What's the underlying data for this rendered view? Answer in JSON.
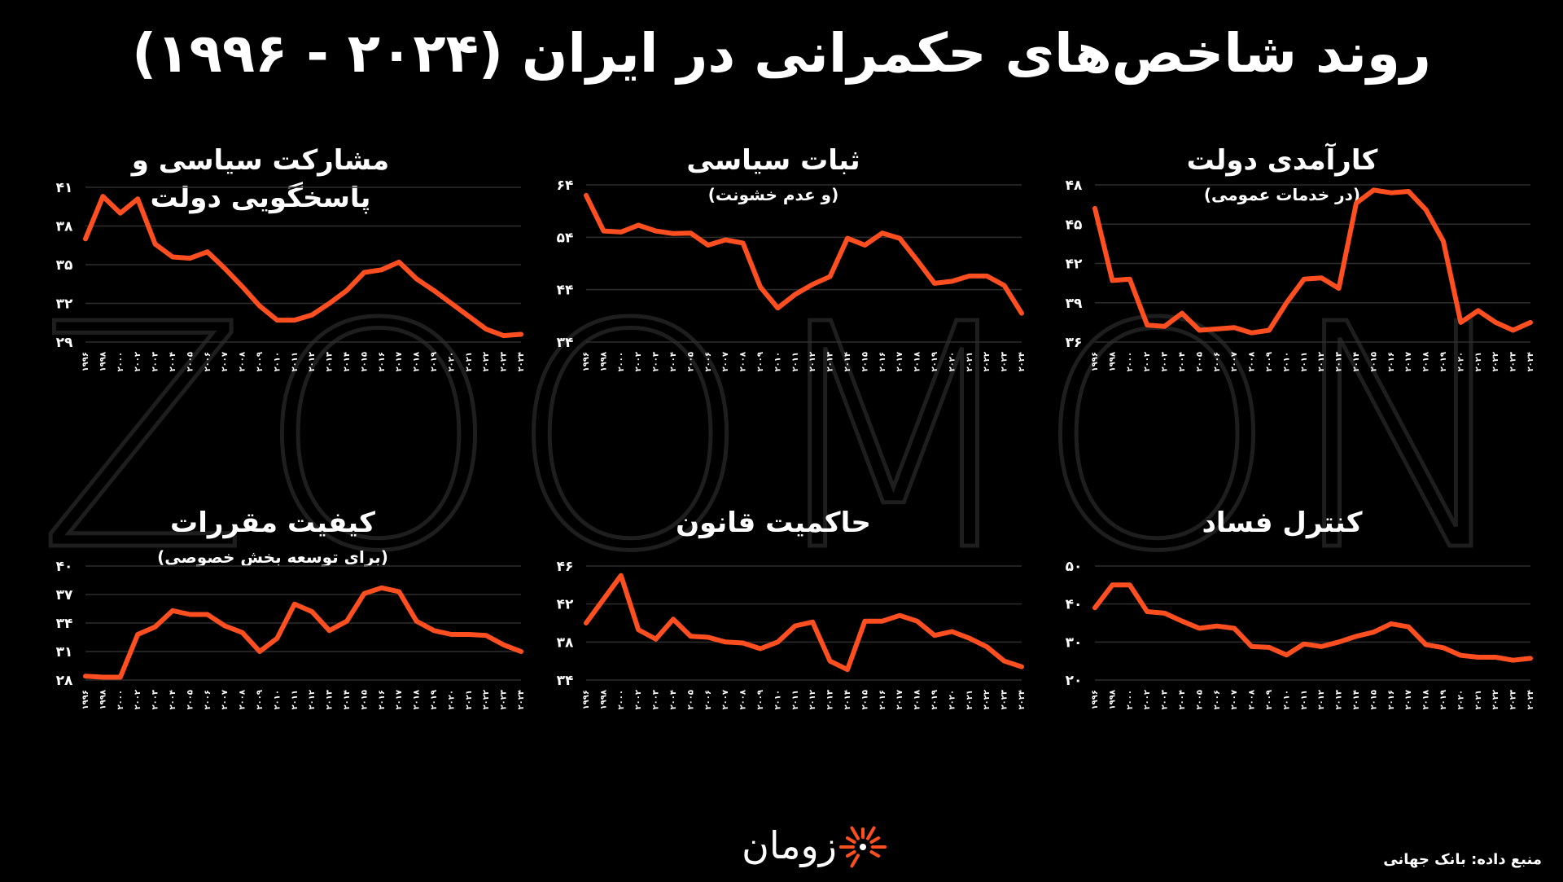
{
  "title": "روند شاخص‌های حکمرانی در ایران (۲۰۲۴ - ۱۹۹۶)",
  "watermark": "ZOOMON",
  "logo_text": "زومان",
  "source": "منبع داده: بانک جهانی",
  "colors": {
    "line": "#ff4e1f",
    "background": "#000000",
    "grid": "#2e2e2e",
    "text": "#ffffff"
  },
  "x_ticks": [
    "۱۹۹۶",
    "۱۹۹۸",
    "۲۰۰۰",
    "۲۰۰۲",
    "۲۰۰۳",
    "۲۰۰۴",
    "۲۰۰۵",
    "۲۰۰۶",
    "۲۰۰۷",
    "۲۰۰۸",
    "۲۰۰۹",
    "۲۰۱۰",
    "۲۰۱۱",
    "۲۰۱۲",
    "۲۰۱۳",
    "۲۰۱۴",
    "۲۰۱۵",
    "۲۰۱۶",
    "۲۰۱۷",
    "۲۰۱۸",
    "۲۰۱۹",
    "۲۰۲۰",
    "۲۰۲۱",
    "۲۰۲۲",
    "۲۰۲۳",
    "۲۰۲۴"
  ],
  "chart_data": [
    {
      "type": "line",
      "title": "مشارکت سیاسی و پاسخگویی دولت",
      "subtitle": "",
      "x": [
        1996,
        1998,
        2000,
        2002,
        2003,
        2004,
        2005,
        2006,
        2007,
        2008,
        2009,
        2010,
        2011,
        2012,
        2013,
        2014,
        2015,
        2016,
        2017,
        2018,
        2019,
        2020,
        2021,
        2022,
        2023,
        2024
      ],
      "y": [
        37.0,
        40.3,
        39.0,
        40.1,
        36.6,
        35.6,
        35.5,
        36.0,
        34.7,
        33.3,
        31.8,
        30.7,
        30.7,
        31.1,
        32.0,
        33.0,
        34.4,
        34.6,
        35.2,
        33.9,
        33.0,
        32.0,
        31.0,
        30.0,
        29.5,
        29.6
      ],
      "ylim": [
        29,
        41
      ],
      "y_ticks": [
        "۲۹",
        "۳۲",
        "۳۵",
        "۳۸",
        "۴۱"
      ],
      "grid": true
    },
    {
      "type": "line",
      "title": "ثبات سیاسی",
      "subtitle": "(و عدم خشونت)",
      "x": [
        1996,
        1998,
        2000,
        2002,
        2003,
        2004,
        2005,
        2006,
        2007,
        2008,
        2009,
        2010,
        2011,
        2012,
        2013,
        2014,
        2015,
        2016,
        2017,
        2018,
        2019,
        2020,
        2021,
        2022,
        2023,
        2024
      ],
      "y": [
        62.0,
        55.2,
        55.0,
        56.3,
        55.2,
        54.7,
        54.8,
        52.5,
        53.5,
        52.9,
        44.5,
        40.5,
        43.1,
        45.0,
        46.5,
        53.8,
        52.5,
        54.8,
        53.8,
        49.6,
        45.2,
        45.6,
        46.6,
        46.6,
        44.8,
        39.5
      ],
      "ylim": [
        34,
        64
      ],
      "y_ticks": [
        "۳۴",
        "۴۴",
        "۵۴",
        "۶۴"
      ],
      "grid": true
    },
    {
      "type": "line",
      "title": "کارآمدی دولت",
      "subtitle": "(در خدمات عمومی)",
      "x": [
        1996,
        1998,
        2000,
        2002,
        2003,
        2004,
        2005,
        2006,
        2007,
        2008,
        2009,
        2010,
        2011,
        2012,
        2013,
        2014,
        2015,
        2016,
        2017,
        2018,
        2019,
        2020,
        2021,
        2022,
        2023,
        2024
      ],
      "y": [
        46.2,
        40.7,
        40.8,
        37.3,
        37.2,
        38.2,
        36.9,
        37.0,
        37.1,
        36.7,
        36.9,
        39.0,
        40.8,
        40.9,
        40.1,
        46.6,
        47.6,
        47.4,
        47.5,
        46.1,
        43.7,
        37.5,
        38.4,
        37.5,
        36.9,
        37.5
      ],
      "ylim": [
        36,
        48
      ],
      "y_ticks": [
        "۳۶",
        "۳۹",
        "۴۲",
        "۴۵",
        "۴۸"
      ],
      "grid": true
    },
    {
      "type": "line",
      "title": "کیفیت مقررات",
      "subtitle": "(برای توسعه بخش خصوصی)",
      "x": [
        1996,
        1998,
        2000,
        2002,
        2003,
        2004,
        2005,
        2006,
        2007,
        2008,
        2009,
        2010,
        2011,
        2012,
        2013,
        2014,
        2015,
        2016,
        2017,
        2018,
        2019,
        2020,
        2021,
        2022,
        2023,
        2024
      ],
      "y": [
        28.4,
        28.3,
        28.3,
        32.8,
        33.6,
        35.3,
        34.9,
        34.9,
        33.7,
        33.0,
        31.0,
        32.4,
        36.0,
        35.2,
        33.2,
        34.2,
        37.1,
        37.7,
        37.3,
        34.2,
        33.2,
        32.8,
        32.8,
        32.7,
        31.7,
        31.0
      ],
      "ylim": [
        28,
        40
      ],
      "y_ticks": [
        "۲۸",
        "۳۱",
        "۳۴",
        "۳۷",
        "۴۰"
      ],
      "grid": true
    },
    {
      "type": "line",
      "title": "حاکمیت قانون",
      "subtitle": "",
      "x": [
        1996,
        1998,
        2000,
        2002,
        2003,
        2004,
        2005,
        2006,
        2007,
        2008,
        2009,
        2010,
        2011,
        2012,
        2013,
        2014,
        2015,
        2016,
        2017,
        2018,
        2019,
        2020,
        2021,
        2022,
        2023,
        2024
      ],
      "y": [
        40.0,
        42.5,
        45.0,
        39.3,
        38.3,
        40.4,
        38.6,
        38.5,
        38.0,
        37.9,
        37.3,
        38.0,
        39.7,
        40.1,
        36.0,
        35.1,
        40.2,
        40.2,
        40.8,
        40.2,
        38.7,
        39.1,
        38.4,
        37.5,
        36.0,
        35.4
      ],
      "ylim": [
        34,
        46
      ],
      "y_ticks": [
        "۳۴",
        "۳۸",
        "۴۲",
        "۴۶"
      ],
      "grid": true
    },
    {
      "type": "line",
      "title": "کنترل فساد",
      "subtitle": "",
      "x": [
        1996,
        1998,
        2000,
        2002,
        2003,
        2004,
        2005,
        2006,
        2007,
        2008,
        2009,
        2010,
        2011,
        2012,
        2013,
        2014,
        2015,
        2016,
        2017,
        2018,
        2019,
        2020,
        2021,
        2022,
        2023,
        2024
      ],
      "y": [
        39.0,
        45.0,
        45.0,
        38.0,
        37.6,
        35.5,
        33.6,
        34.2,
        33.6,
        28.8,
        28.6,
        26.6,
        29.5,
        28.8,
        30.0,
        31.5,
        32.6,
        34.8,
        34.0,
        29.3,
        28.5,
        26.5,
        26.0,
        26.0,
        25.2,
        25.7
      ],
      "ylim": [
        20,
        50
      ],
      "y_ticks": [
        "۲۰",
        "۳۰",
        "۴۰",
        "۵۰"
      ],
      "grid": true
    }
  ]
}
